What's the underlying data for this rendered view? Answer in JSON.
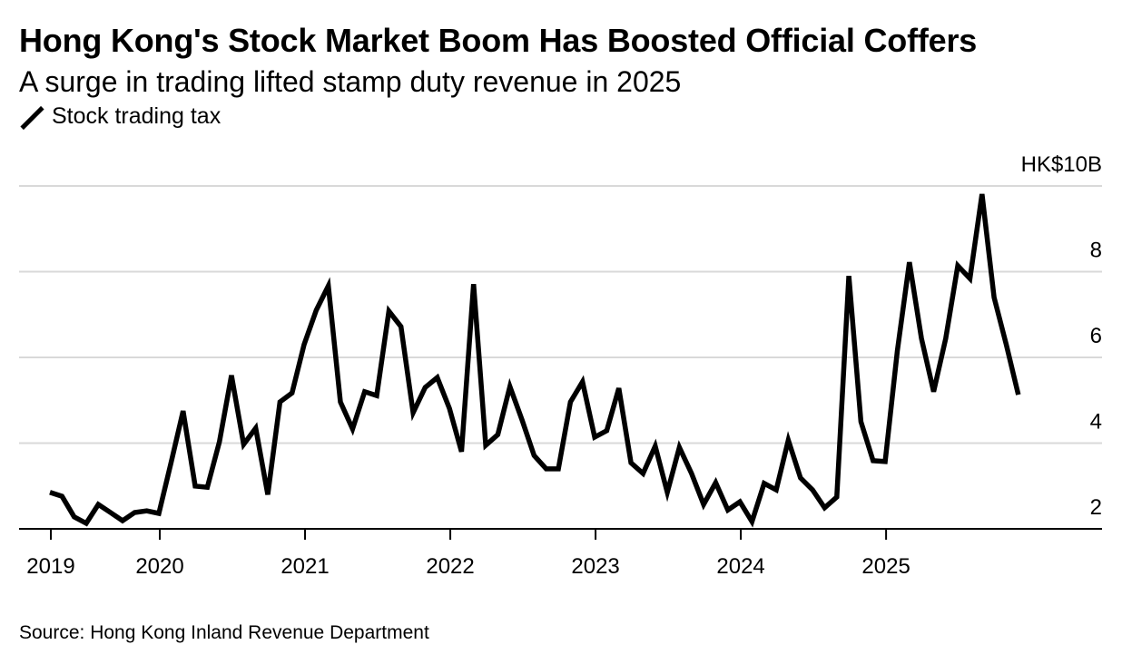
{
  "header": {
    "title": "Hong Kong's Stock Market Boom Has Boosted Official Coffers",
    "subtitle": "A surge in trading lifted stamp duty revenue in 2025",
    "legend_label": "Stock trading tax"
  },
  "footer": {
    "source": "Source: Hong Kong Inland Revenue Department"
  },
  "chart_data": {
    "type": "line",
    "title": "Hong Kong's Stock Market Boom Has Boosted Official Coffers",
    "subtitle": "A surge in trading lifted stamp duty revenue in 2025",
    "xlabel": "",
    "ylabel": "HK$10B",
    "y_unit_label": "HK$10B",
    "ylim": [
      2,
      10
    ],
    "y_ticks": [
      2,
      4,
      6,
      8,
      10
    ],
    "y_tick_labels": [
      "2",
      "4",
      "6",
      "8",
      "HK$10B"
    ],
    "y_axis_side": "right",
    "grid": true,
    "legend_position": "top-left",
    "x_start": "2019-04",
    "x_end": "2025-12",
    "x_ticks": [
      {
        "label": "2019",
        "month_index": 0
      },
      {
        "label": "2020",
        "month_index": 9
      },
      {
        "label": "2021",
        "month_index": 21
      },
      {
        "label": "2022",
        "month_index": 33
      },
      {
        "label": "2023",
        "month_index": 45
      },
      {
        "label": "2024",
        "month_index": 57
      },
      {
        "label": "2025",
        "month_index": 69
      }
    ],
    "series": [
      {
        "name": "Stock trading tax",
        "color": "#000000",
        "x": [
          "2019-04",
          "2019-05",
          "2019-06",
          "2019-07",
          "2019-08",
          "2019-09",
          "2019-10",
          "2019-11",
          "2019-12",
          "2020-01",
          "2020-02",
          "2020-03",
          "2020-04",
          "2020-05",
          "2020-06",
          "2020-07",
          "2020-08",
          "2020-09",
          "2020-10",
          "2020-11",
          "2020-12",
          "2021-01",
          "2021-02",
          "2021-03",
          "2021-04",
          "2021-05",
          "2021-06",
          "2021-07",
          "2021-08",
          "2021-09",
          "2021-10",
          "2021-11",
          "2021-12",
          "2022-01",
          "2022-02",
          "2022-03",
          "2022-04",
          "2022-05",
          "2022-06",
          "2022-07",
          "2022-08",
          "2022-09",
          "2022-10",
          "2022-11",
          "2022-12",
          "2023-01",
          "2023-02",
          "2023-03",
          "2023-04",
          "2023-05",
          "2023-06",
          "2023-07",
          "2023-08",
          "2023-09",
          "2023-10",
          "2023-11",
          "2023-12",
          "2024-01",
          "2024-02",
          "2024-03",
          "2024-04",
          "2024-05",
          "2024-06",
          "2024-07",
          "2024-08",
          "2024-09",
          "2024-10",
          "2024-11",
          "2024-12",
          "2025-01",
          "2025-02",
          "2025-03",
          "2025-04",
          "2025-05",
          "2025-06",
          "2025-07",
          "2025-08",
          "2025-09",
          "2025-10",
          "2025-11",
          "2025-12"
        ],
        "values": [
          2.85,
          2.76,
          2.28,
          2.13,
          2.57,
          2.38,
          2.19,
          2.38,
          2.42,
          2.36,
          3.54,
          4.75,
          3.0,
          2.97,
          4.03,
          5.58,
          3.97,
          4.35,
          2.8,
          4.96,
          5.17,
          6.3,
          7.1,
          7.67,
          4.96,
          4.33,
          5.2,
          5.11,
          7.08,
          6.72,
          4.71,
          5.3,
          5.53,
          4.81,
          3.8,
          7.71,
          3.95,
          4.2,
          5.32,
          4.54,
          3.71,
          3.4,
          3.4,
          4.96,
          5.43,
          4.14,
          4.29,
          5.28,
          3.54,
          3.29,
          3.93,
          2.85,
          3.9,
          3.29,
          2.57,
          3.08,
          2.44,
          2.63,
          2.17,
          3.06,
          2.91,
          4.07,
          3.19,
          2.91,
          2.49,
          2.74,
          7.9,
          4.5,
          3.59,
          3.57,
          6.15,
          8.22,
          6.44,
          5.2,
          6.44,
          8.14,
          7.84,
          9.81,
          7.4,
          6.3,
          5.13
        ]
      }
    ]
  },
  "colors": {
    "line": "#000000",
    "grid": "#d9d9d9",
    "axis": "#000000",
    "text": "#000000"
  }
}
